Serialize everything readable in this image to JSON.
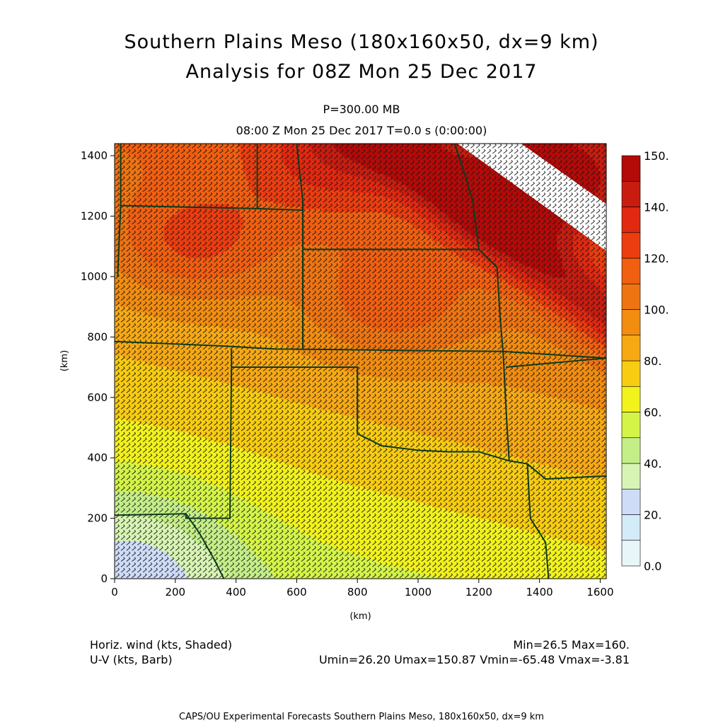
{
  "title_line1": "Southern Plains Meso (180x160x50, dx=9 km)",
  "title_line2": "Analysis for 08Z Mon 25 Dec 2017",
  "level": "P=300.00 MB",
  "time_line": "08:00 Z Mon 25 Dec 2017    T=0.0 s (0:00:00)",
  "footer": {
    "left_line1": "Horiz. wind (kts, Shaded)",
    "left_line2": "U-V (kts, Barb)",
    "right_line1": "Min=26.5 Max=160.",
    "right_line2": "Umin=26.20 Umax=150.87 Vmin=-65.48 Vmax=-3.81",
    "credit": "CAPS/OU Experimental Forecasts  Southern Plains Meso, 180x160x50, dx=9 km"
  },
  "chart_data": {
    "type": "heatmap",
    "field": "horizontal wind speed (kts)",
    "xlabel": "(km)",
    "ylabel": "(km)",
    "xlim": [
      0,
      1620
    ],
    "ylim": [
      0,
      1440
    ],
    "xticks": [
      "0",
      "200",
      "400",
      "600",
      "800",
      "1000",
      "1200",
      "1400",
      "1600"
    ],
    "yticks": [
      "0",
      "200",
      "400",
      "600",
      "800",
      "1000",
      "1200",
      "1400"
    ],
    "colorbar": {
      "labels": [
        "0.0",
        "20.",
        "40.",
        "60.",
        "80.",
        "100.",
        "120.",
        "140.",
        "150."
      ],
      "levels": [
        0,
        10,
        20,
        30,
        40,
        50,
        60,
        70,
        80,
        90,
        100,
        110,
        120,
        130,
        140,
        150,
        160
      ],
      "colors": [
        "#e8f6fa",
        "#d4ecf8",
        "#cfdcf8",
        "#d8f4b4",
        "#c4ee88",
        "#d4f448",
        "#f2f21c",
        "#f8cc10",
        "#f7a914",
        "#f28d10",
        "#ee7412",
        "#f15f10",
        "#ec3d10",
        "#e12810",
        "#c81c10",
        "#b40a08"
      ]
    },
    "wind_maxima": [
      {
        "x": 260,
        "y": 1110,
        "speed": 130
      },
      {
        "x": 900,
        "y": 900,
        "speed": 125
      },
      {
        "x": 720,
        "y": 1380,
        "speed": 128
      },
      {
        "x": 1400,
        "y": 1300,
        "speed": 155
      }
    ],
    "wind_minimum": {
      "x": 50,
      "y": 20,
      "speed": 26.5
    },
    "barb_direction": "from the west-northwest",
    "barb_spacing_km": 18
  }
}
